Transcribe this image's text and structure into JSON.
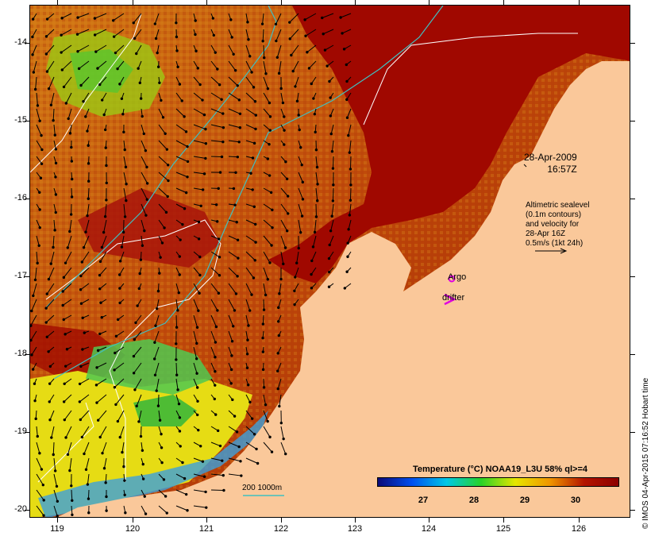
{
  "map": {
    "lat_ticks": [
      "-14",
      "-15",
      "-16",
      "-17",
      "-18",
      "-19",
      "-20"
    ],
    "lon_ticks": [
      "119",
      "120",
      "121",
      "122",
      "123",
      "124",
      "125",
      "126"
    ],
    "colors": {
      "land": "#fac89a",
      "warm_ocean": "#a00a00",
      "mid_ocean": "#c85a0a",
      "cool_ocean": "#f0d20a",
      "coast_cool": "#1e3cc8",
      "isobath": "#40c0c0",
      "contour": "#ffffff"
    }
  },
  "date_label": {
    "line1": "28-Apr-2009",
    "line2": "16:57Z"
  },
  "altimetry_label": {
    "line1": "Altimetric sealevel",
    "line2": "(0.1m contours)",
    "line3": "and velocity for",
    "line4": "28-Apr 16Z",
    "line5": "0.5m/s (1kt 24h)"
  },
  "legend": {
    "argo": "Argo",
    "drifter": "drifter",
    "depth": "200  1000m"
  },
  "colorbar": {
    "title": "Temperature (°C) NOAA19_L3U 58% ql>=4",
    "ticks": [
      "27",
      "28",
      "29",
      "30"
    ],
    "stops": [
      "#0a0a78",
      "#0050f0",
      "#00c8e6",
      "#28d228",
      "#e6e600",
      "#f09600",
      "#b41400",
      "#8c0000"
    ]
  },
  "credit": "© IMOS 04-Apr-2015 07:16:52 Hobart time"
}
